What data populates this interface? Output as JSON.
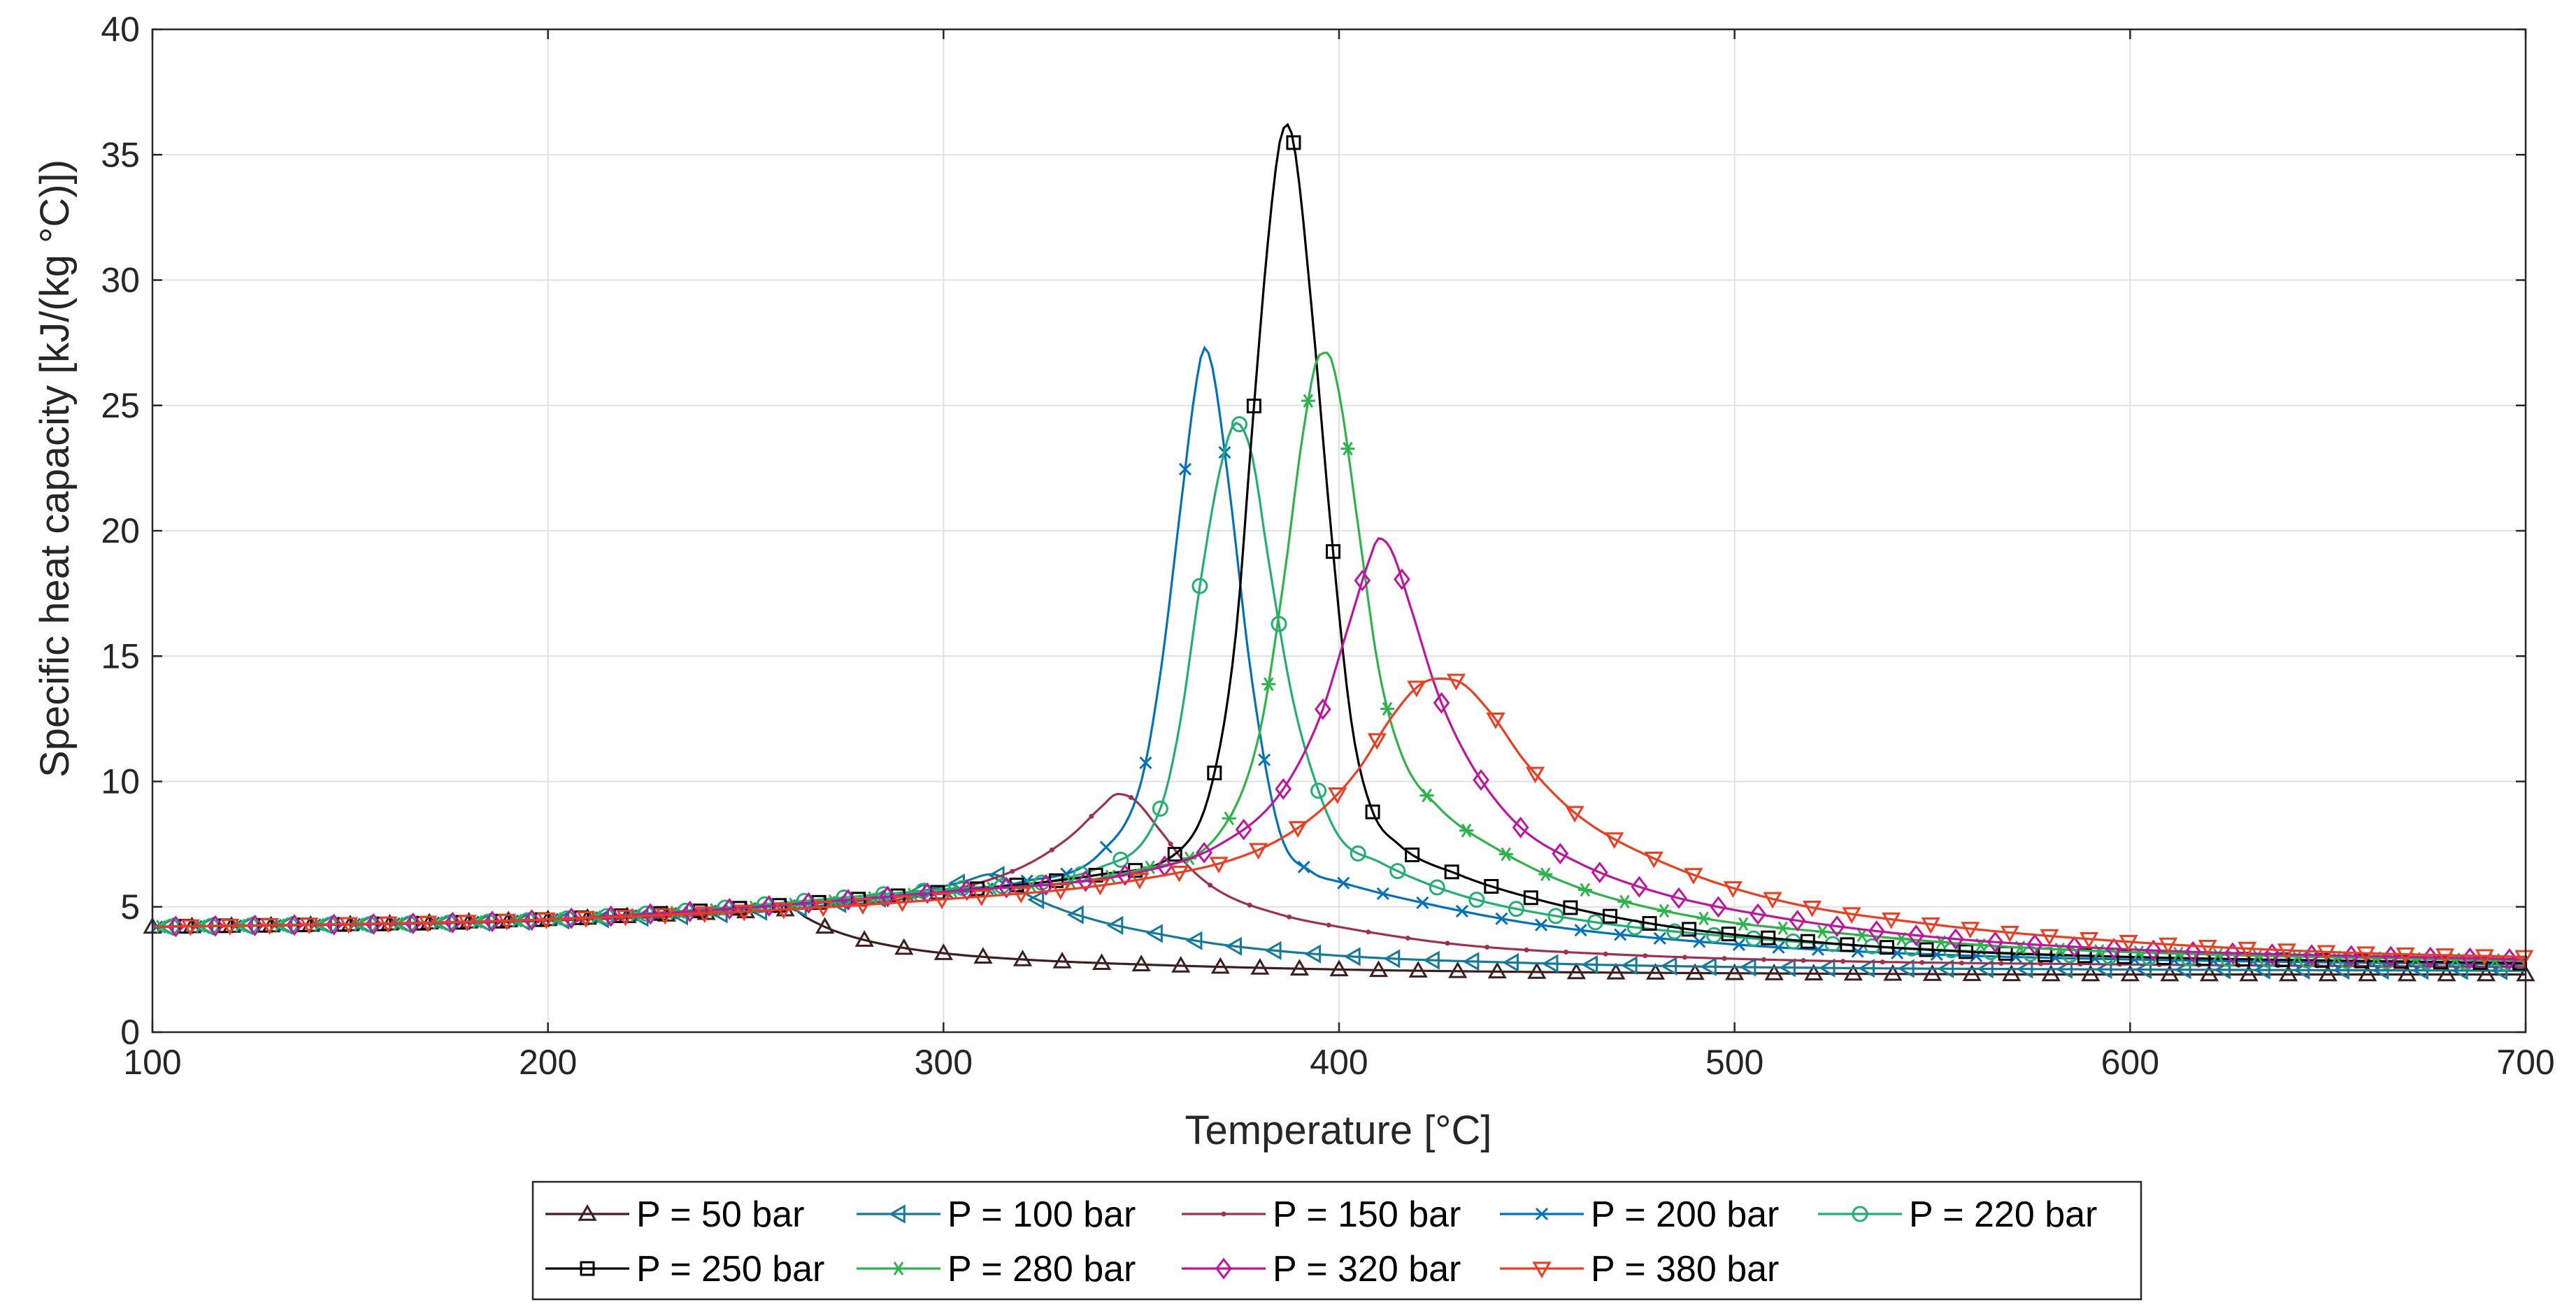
{
  "chart_data": {
    "type": "line",
    "title": "",
    "xlabel": "Temperature [°C]",
    "ylabel": "Specific heat capacity  [kJ/(kg °C)])",
    "xlim": [
      100,
      700
    ],
    "ylim": [
      0,
      40
    ],
    "xticks": [
      100,
      200,
      300,
      400,
      500,
      600,
      700
    ],
    "yticks": [
      0,
      5,
      10,
      15,
      20,
      25,
      30,
      35,
      40
    ],
    "grid": true,
    "legend_position": "bottom-center",
    "series": [
      {
        "name": "P = 50 bar",
        "color": "#3d1f1f",
        "marker": "triangle-up",
        "points": [
          [
            100,
            4.2
          ],
          [
            150,
            4.3
          ],
          [
            200,
            4.5
          ],
          [
            240,
            4.75
          ],
          [
            255,
            4.85
          ],
          [
            262,
            4.9
          ],
          [
            265,
            4.6
          ],
          [
            270,
            4.2
          ],
          [
            275,
            3.9
          ],
          [
            285,
            3.5
          ],
          [
            300,
            3.15
          ],
          [
            320,
            2.9
          ],
          [
            350,
            2.7
          ],
          [
            400,
            2.5
          ],
          [
            450,
            2.4
          ],
          [
            500,
            2.35
          ],
          [
            600,
            2.3
          ],
          [
            700,
            2.3
          ]
        ]
      },
      {
        "name": "P = 100 bar",
        "color": "#137a9b",
        "marker": "triangle-left",
        "points": [
          [
            100,
            4.2
          ],
          [
            200,
            4.45
          ],
          [
            260,
            4.9
          ],
          [
            290,
            5.5
          ],
          [
            305,
            6.0
          ],
          [
            312,
            6.3
          ],
          [
            316,
            6.1
          ],
          [
            320,
            5.6
          ],
          [
            328,
            5.0
          ],
          [
            340,
            4.4
          ],
          [
            355,
            3.9
          ],
          [
            370,
            3.5
          ],
          [
            400,
            3.05
          ],
          [
            450,
            2.75
          ],
          [
            500,
            2.6
          ],
          [
            600,
            2.5
          ],
          [
            700,
            2.45
          ]
        ]
      },
      {
        "name": "P = 150 bar",
        "color": "#a03050",
        "marker": "dot",
        "points": [
          [
            100,
            4.2
          ],
          [
            200,
            4.45
          ],
          [
            270,
            5.0
          ],
          [
            300,
            5.6
          ],
          [
            320,
            6.6
          ],
          [
            332,
            7.8
          ],
          [
            340,
            9.0
          ],
          [
            344,
            9.5
          ],
          [
            348,
            9.3
          ],
          [
            355,
            8.0
          ],
          [
            362,
            6.6
          ],
          [
            370,
            5.6
          ],
          [
            385,
            4.7
          ],
          [
            400,
            4.2
          ],
          [
            430,
            3.5
          ],
          [
            470,
            3.1
          ],
          [
            520,
            2.85
          ],
          [
            600,
            2.7
          ],
          [
            700,
            2.6
          ]
        ]
      },
      {
        "name": "P = 200 bar",
        "color": "#0072bd",
        "marker": "x",
        "points": [
          [
            100,
            4.2
          ],
          [
            200,
            4.5
          ],
          [
            280,
            5.3
          ],
          [
            320,
            6.0
          ],
          [
            340,
            7.2
          ],
          [
            350,
            10.0
          ],
          [
            355,
            14.5
          ],
          [
            360,
            21.0
          ],
          [
            364,
            26.0
          ],
          [
            366,
            27.3
          ],
          [
            368,
            26.5
          ],
          [
            372,
            22.0
          ],
          [
            378,
            14.0
          ],
          [
            385,
            8.0
          ],
          [
            393,
            6.4
          ],
          [
            400,
            6.0
          ],
          [
            420,
            5.2
          ],
          [
            450,
            4.3
          ],
          [
            500,
            3.5
          ],
          [
            550,
            3.1
          ],
          [
            600,
            2.9
          ],
          [
            700,
            2.7
          ]
        ]
      },
      {
        "name": "P = 220 bar",
        "color": "#20b070",
        "marker": "circle",
        "points": [
          [
            100,
            4.2
          ],
          [
            200,
            4.5
          ],
          [
            300,
            5.7
          ],
          [
            340,
            6.6
          ],
          [
            355,
            9.0
          ],
          [
            360,
            12.5
          ],
          [
            365,
            18.0
          ],
          [
            370,
            22.5
          ],
          [
            374,
            24.3
          ],
          [
            378,
            23.0
          ],
          [
            382,
            19.0
          ],
          [
            388,
            13.5
          ],
          [
            394,
            10.0
          ],
          [
            400,
            7.8
          ],
          [
            410,
            6.8
          ],
          [
            430,
            5.5
          ],
          [
            460,
            4.5
          ],
          [
            500,
            3.8
          ],
          [
            550,
            3.3
          ],
          [
            600,
            3.0
          ],
          [
            700,
            2.75
          ]
        ]
      },
      {
        "name": "P = 250 bar",
        "color": "#000000",
        "marker": "square",
        "points": [
          [
            100,
            4.2
          ],
          [
            200,
            4.5
          ],
          [
            300,
            5.6
          ],
          [
            340,
            6.3
          ],
          [
            360,
            7.3
          ],
          [
            368,
            10.0
          ],
          [
            374,
            16.0
          ],
          [
            378,
            24.0
          ],
          [
            382,
            31.5
          ],
          [
            385,
            35.5
          ],
          [
            387,
            36.2
          ],
          [
            389,
            35.0
          ],
          [
            393,
            29.0
          ],
          [
            398,
            20.0
          ],
          [
            403,
            12.5
          ],
          [
            408,
            9.0
          ],
          [
            415,
            7.5
          ],
          [
            430,
            6.3
          ],
          [
            450,
            5.3
          ],
          [
            480,
            4.3
          ],
          [
            520,
            3.6
          ],
          [
            560,
            3.2
          ],
          [
            600,
            3.0
          ],
          [
            700,
            2.75
          ]
        ]
      },
      {
        "name": "P = 280 bar",
        "color": "#2bb44a",
        "marker": "asterisk",
        "points": [
          [
            100,
            4.2
          ],
          [
            200,
            4.5
          ],
          [
            300,
            5.6
          ],
          [
            350,
            6.5
          ],
          [
            370,
            8.0
          ],
          [
            380,
            12.0
          ],
          [
            386,
            18.0
          ],
          [
            391,
            24.0
          ],
          [
            395,
            27.0
          ],
          [
            397,
            27.1
          ],
          [
            400,
            25.5
          ],
          [
            405,
            20.0
          ],
          [
            410,
            14.5
          ],
          [
            416,
            11.0
          ],
          [
            425,
            9.0
          ],
          [
            440,
            7.3
          ],
          [
            460,
            5.8
          ],
          [
            490,
            4.6
          ],
          [
            530,
            3.9
          ],
          [
            570,
            3.4
          ],
          [
            620,
            3.1
          ],
          [
            700,
            2.85
          ]
        ]
      },
      {
        "name": "P = 320 bar",
        "color": "#c0149f",
        "marker": "diamond",
        "points": [
          [
            100,
            4.2
          ],
          [
            200,
            4.5
          ],
          [
            300,
            5.6
          ],
          [
            350,
            6.4
          ],
          [
            370,
            7.5
          ],
          [
            385,
            9.5
          ],
          [
            395,
            12.5
          ],
          [
            402,
            16.0
          ],
          [
            408,
            19.0
          ],
          [
            410,
            19.7
          ],
          [
            413,
            19.3
          ],
          [
            418,
            17.0
          ],
          [
            425,
            13.5
          ],
          [
            433,
            10.8
          ],
          [
            445,
            8.3
          ],
          [
            460,
            6.8
          ],
          [
            480,
            5.6
          ],
          [
            510,
            4.6
          ],
          [
            550,
            3.8
          ],
          [
            600,
            3.3
          ],
          [
            700,
            2.9
          ]
        ]
      },
      {
        "name": "P = 380 bar",
        "color": "#f03c1e",
        "marker": "triangle-down",
        "points": [
          [
            100,
            4.2
          ],
          [
            200,
            4.5
          ],
          [
            300,
            5.3
          ],
          [
            350,
            6.1
          ],
          [
            380,
            7.3
          ],
          [
            395,
            8.8
          ],
          [
            405,
            10.5
          ],
          [
            413,
            12.5
          ],
          [
            420,
            13.8
          ],
          [
            425,
            14.1
          ],
          [
            430,
            14.0
          ],
          [
            438,
            12.8
          ],
          [
            447,
            10.8
          ],
          [
            460,
            8.7
          ],
          [
            480,
            6.9
          ],
          [
            510,
            5.3
          ],
          [
            550,
            4.3
          ],
          [
            600,
            3.6
          ],
          [
            650,
            3.2
          ],
          [
            700,
            3.0
          ]
        ]
      }
    ]
  }
}
